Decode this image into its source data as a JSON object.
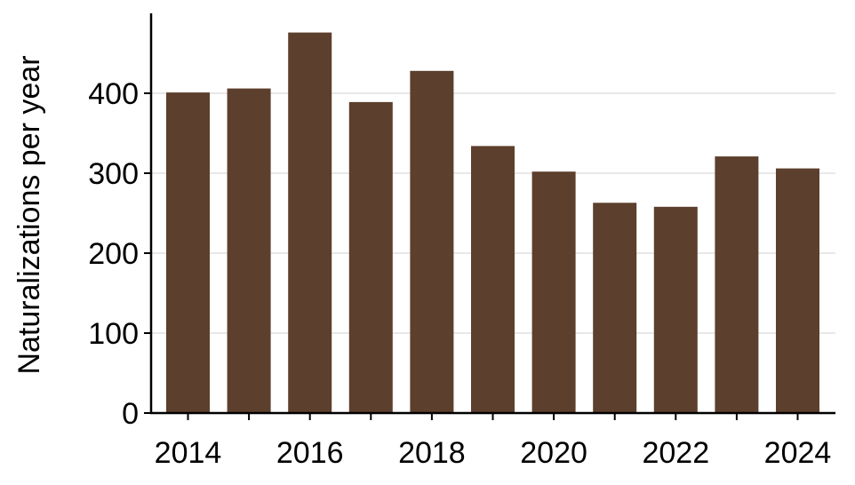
{
  "chart_data": {
    "type": "bar",
    "title": "",
    "xlabel": "",
    "ylabel": "Naturalizations per year",
    "categories": [
      "2014",
      "2015",
      "2016",
      "2017",
      "2018",
      "2019",
      "2020",
      "2021",
      "2022",
      "2023",
      "2024"
    ],
    "values": [
      401,
      406,
      476,
      389,
      428,
      334,
      302,
      263,
      258,
      321,
      306
    ],
    "ylim": [
      0,
      500
    ],
    "yticks": [
      "0",
      "100",
      "200",
      "300",
      "400"
    ],
    "xtick_labels": [
      "2014",
      "2016",
      "2018",
      "2020",
      "2022",
      "2024"
    ],
    "grid": "horizontal",
    "bar_color": "#5C3F2C",
    "grid_color": "#e8e8e8",
    "axis_color": "#000000"
  }
}
